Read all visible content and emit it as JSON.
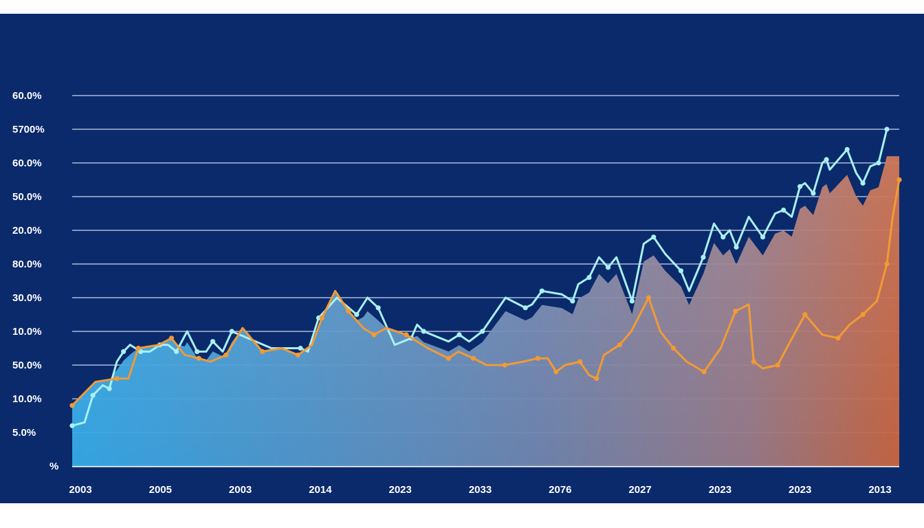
{
  "chart_data": {
    "type": "line",
    "title": "",
    "xlabel": "",
    "ylabel": "",
    "y_tick_labels": [
      "%",
      "5.0%",
      "10.0%",
      "50.0%",
      "10.0%",
      "30.0%",
      "80.0%",
      "20.0%",
      "50.0%",
      "60.0%",
      "5700%",
      "60.0%"
    ],
    "x_tick_labels": [
      "2003",
      "2005",
      "2003",
      "2014",
      "2023",
      "2033",
      "2076",
      "2027",
      "2023",
      "2023",
      "2013"
    ],
    "ylim": [
      0,
      11
    ],
    "xlim": [
      0,
      100
    ],
    "grid": true,
    "series": [
      {
        "name": "cyan-line",
        "color": "#a8f0f4",
        "points": [
          [
            0,
            1.2
          ],
          [
            1.5,
            1.3
          ],
          [
            2.5,
            2.1
          ],
          [
            3.7,
            2.4
          ],
          [
            4.5,
            2.3
          ],
          [
            5.4,
            3.1
          ],
          [
            6.2,
            3.4
          ],
          [
            7.0,
            3.6
          ],
          [
            8.3,
            3.4
          ],
          [
            9.4,
            3.4
          ],
          [
            10.6,
            3.6
          ],
          [
            11.6,
            3.6
          ],
          [
            12.6,
            3.4
          ],
          [
            13.9,
            4.0
          ],
          [
            15.1,
            3.4
          ],
          [
            16.2,
            3.4
          ],
          [
            17.0,
            3.7
          ],
          [
            18.2,
            3.4
          ],
          [
            19.3,
            4.0
          ],
          [
            24.1,
            3.5
          ],
          [
            27.6,
            3.5
          ],
          [
            28.5,
            3.4
          ],
          [
            29.8,
            4.4
          ],
          [
            32.0,
            5.0
          ],
          [
            34.4,
            4.5
          ],
          [
            35.7,
            5.0
          ],
          [
            37.0,
            4.7
          ],
          [
            39.0,
            3.6
          ],
          [
            41.0,
            3.8
          ],
          [
            41.7,
            4.2
          ],
          [
            42.5,
            4.0
          ],
          [
            45.5,
            3.7
          ],
          [
            46.8,
            3.9
          ],
          [
            48.0,
            3.7
          ],
          [
            49.6,
            4.0
          ],
          [
            52.4,
            5.0
          ],
          [
            54.8,
            4.7
          ],
          [
            55.6,
            4.8
          ],
          [
            56.8,
            5.2
          ],
          [
            59.2,
            5.1
          ],
          [
            60.5,
            4.9
          ],
          [
            61.2,
            5.4
          ],
          [
            62.5,
            5.6
          ],
          [
            63.7,
            6.2
          ],
          [
            64.8,
            5.9
          ],
          [
            65.8,
            6.2
          ],
          [
            67.7,
            4.9
          ],
          [
            69.1,
            6.6
          ],
          [
            70.3,
            6.8
          ],
          [
            71.7,
            6.3
          ],
          [
            73.6,
            5.8
          ],
          [
            74.6,
            5.2
          ],
          [
            76.3,
            6.2
          ],
          [
            77.6,
            7.2
          ],
          [
            78.7,
            6.8
          ],
          [
            79.5,
            7.0
          ],
          [
            80.3,
            6.5
          ],
          [
            81.8,
            7.4
          ],
          [
            83.5,
            6.8
          ],
          [
            85.0,
            7.5
          ],
          [
            86.0,
            7.6
          ],
          [
            87.0,
            7.4
          ],
          [
            88.0,
            8.3
          ],
          [
            88.6,
            8.4
          ],
          [
            89.6,
            8.1
          ],
          [
            90.7,
            9.0
          ],
          [
            91.2,
            9.1
          ],
          [
            91.6,
            8.8
          ],
          [
            93.7,
            9.4
          ],
          [
            94.8,
            8.7
          ],
          [
            95.6,
            8.4
          ],
          [
            96.5,
            8.9
          ],
          [
            97.5,
            9.0
          ],
          [
            98.5,
            10.0
          ]
        ]
      },
      {
        "name": "orange-line",
        "color": "#f29a35",
        "points": [
          [
            0,
            1.8
          ],
          [
            2.8,
            2.5
          ],
          [
            5.4,
            2.6
          ],
          [
            6.8,
            2.6
          ],
          [
            8.0,
            3.5
          ],
          [
            10.5,
            3.6
          ],
          [
            12.0,
            3.8
          ],
          [
            13.6,
            3.3
          ],
          [
            15.3,
            3.2
          ],
          [
            16.7,
            3.1
          ],
          [
            18.6,
            3.3
          ],
          [
            20.6,
            4.1
          ],
          [
            23.0,
            3.4
          ],
          [
            25.3,
            3.5
          ],
          [
            27.3,
            3.3
          ],
          [
            29.0,
            3.6
          ],
          [
            30.2,
            4.4
          ],
          [
            31.8,
            5.2
          ],
          [
            33.4,
            4.6
          ],
          [
            35.2,
            4.1
          ],
          [
            36.5,
            3.9
          ],
          [
            38.0,
            4.1
          ],
          [
            40.4,
            3.9
          ],
          [
            43.0,
            3.5
          ],
          [
            45.5,
            3.2
          ],
          [
            46.7,
            3.4
          ],
          [
            48.5,
            3.2
          ],
          [
            50.1,
            3.0
          ],
          [
            52.3,
            3.0
          ],
          [
            54.5,
            3.1
          ],
          [
            56.3,
            3.2
          ],
          [
            57.5,
            3.2
          ],
          [
            58.5,
            2.8
          ],
          [
            59.6,
            3.0
          ],
          [
            61.4,
            3.1
          ],
          [
            62.5,
            2.7
          ],
          [
            63.4,
            2.6
          ],
          [
            64.3,
            3.3
          ],
          [
            66.2,
            3.6
          ],
          [
            67.6,
            4.0
          ],
          [
            69.7,
            5.0
          ],
          [
            71.1,
            4.0
          ],
          [
            72.7,
            3.5
          ],
          [
            74.3,
            3.1
          ],
          [
            76.4,
            2.8
          ],
          [
            78.4,
            3.5
          ],
          [
            80.2,
            4.6
          ],
          [
            81.8,
            4.8
          ],
          [
            82.4,
            3.1
          ],
          [
            83.5,
            2.9
          ],
          [
            85.3,
            3.0
          ],
          [
            86.6,
            3.6
          ],
          [
            88.6,
            4.5
          ],
          [
            90.7,
            3.9
          ],
          [
            92.6,
            3.8
          ],
          [
            94.0,
            4.2
          ],
          [
            95.6,
            4.5
          ],
          [
            97.3,
            4.9
          ],
          [
            98.5,
            6.0
          ],
          [
            99.2,
            7.4
          ],
          [
            100,
            8.5
          ]
        ]
      }
    ]
  }
}
